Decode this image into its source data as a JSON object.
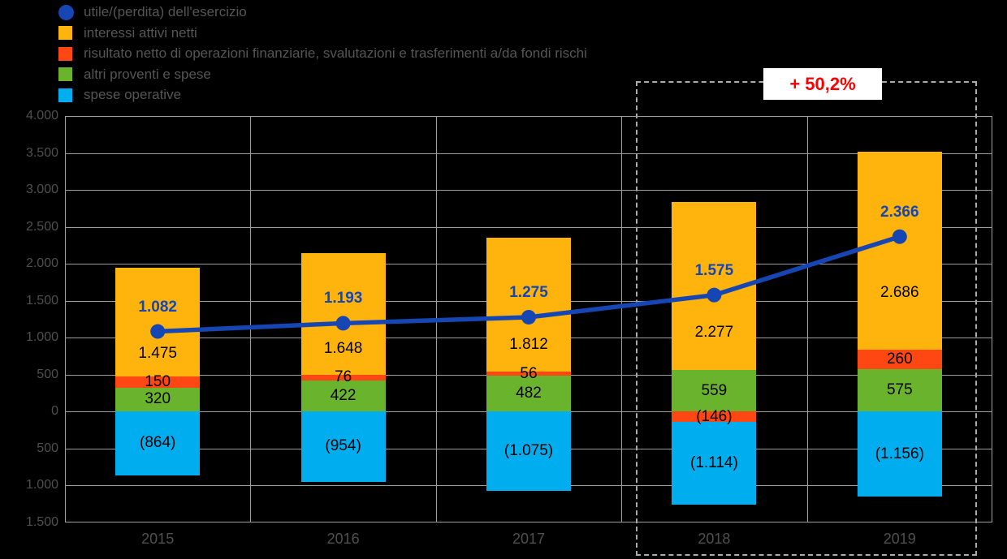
{
  "annotation": {
    "text": "+ 50,2%",
    "color": "#ff0000"
  },
  "legend": {
    "items": [
      {
        "name": "utile-perdita-esercizio",
        "marker": "circle",
        "color": "#1646b4",
        "label": "utile/(perdita) dell'esercizio"
      },
      {
        "name": "interessi-attivi-netti",
        "marker": "square",
        "color": "#ffb30d",
        "label": "interessi attivi netti"
      },
      {
        "name": "risultato-netto-operazioni-finanziarie",
        "marker": "square",
        "color": "#ff4713",
        "label": "risultato netto di operazioni finanziarie, svalutazioni e trasferimenti a/da fondi rischi"
      },
      {
        "name": "altri-proventi-e-spese",
        "marker": "square",
        "color": "#69b42c",
        "label": "altri proventi e spese"
      },
      {
        "name": "spese-operative",
        "marker": "square",
        "color": "#00aeef",
        "label": "spese operative"
      }
    ]
  },
  "chart_data": {
    "type": "bar",
    "subtype": "stacked-bar-with-line-overlay",
    "categories": [
      "2015",
      "2016",
      "2017",
      "2018",
      "2019"
    ],
    "series": [
      {
        "name": "interessi attivi netti",
        "role": "bar",
        "color": "#ffb30d",
        "values": [
          1475,
          1648,
          1812,
          2277,
          2686
        ],
        "labels": [
          "1.475",
          "1.648",
          "1.812",
          "2.277",
          "2.686"
        ]
      },
      {
        "name": "risultato netto di operazioni finanziarie, svalutazioni e trasferimenti a/da fondi rischi",
        "role": "bar",
        "color": "#ff4713",
        "values": [
          150,
          76,
          56,
          -146,
          260
        ],
        "labels": [
          "150",
          "76",
          "56",
          "(146)",
          "260"
        ]
      },
      {
        "name": "altri proventi e spese",
        "role": "bar",
        "color": "#69b42c",
        "values": [
          320,
          422,
          482,
          559,
          575
        ],
        "labels": [
          "320",
          "422",
          "482",
          "559",
          "575"
        ]
      },
      {
        "name": "spese operative",
        "role": "bar",
        "color": "#00aeef",
        "values": [
          -864,
          -954,
          -1075,
          -1114,
          -1156
        ],
        "labels": [
          "(864)",
          "(954)",
          "(1.075)",
          "(1.114)",
          "(1.156)"
        ]
      },
      {
        "name": "utile/(perdita) dell'esercizio",
        "role": "line",
        "color": "#1646b4",
        "values": [
          1082,
          1193,
          1275,
          1575,
          2366
        ],
        "labels": [
          "1.082",
          "1.193",
          "1.275",
          "1.575",
          "2.366"
        ]
      }
    ],
    "ylim": [
      -1500,
      4000
    ],
    "ytick_interval": 500,
    "ytick_labels": [
      "4.000",
      "3.500",
      "3.000",
      "2.500",
      "2.000",
      "1.500",
      "1.000",
      "500",
      "0",
      "500",
      "1.000",
      "1.500"
    ],
    "grid": true,
    "legend_position": "top-left",
    "annotation": "+ 50,2%",
    "highlighted_categories": [
      "2018",
      "2019"
    ]
  }
}
